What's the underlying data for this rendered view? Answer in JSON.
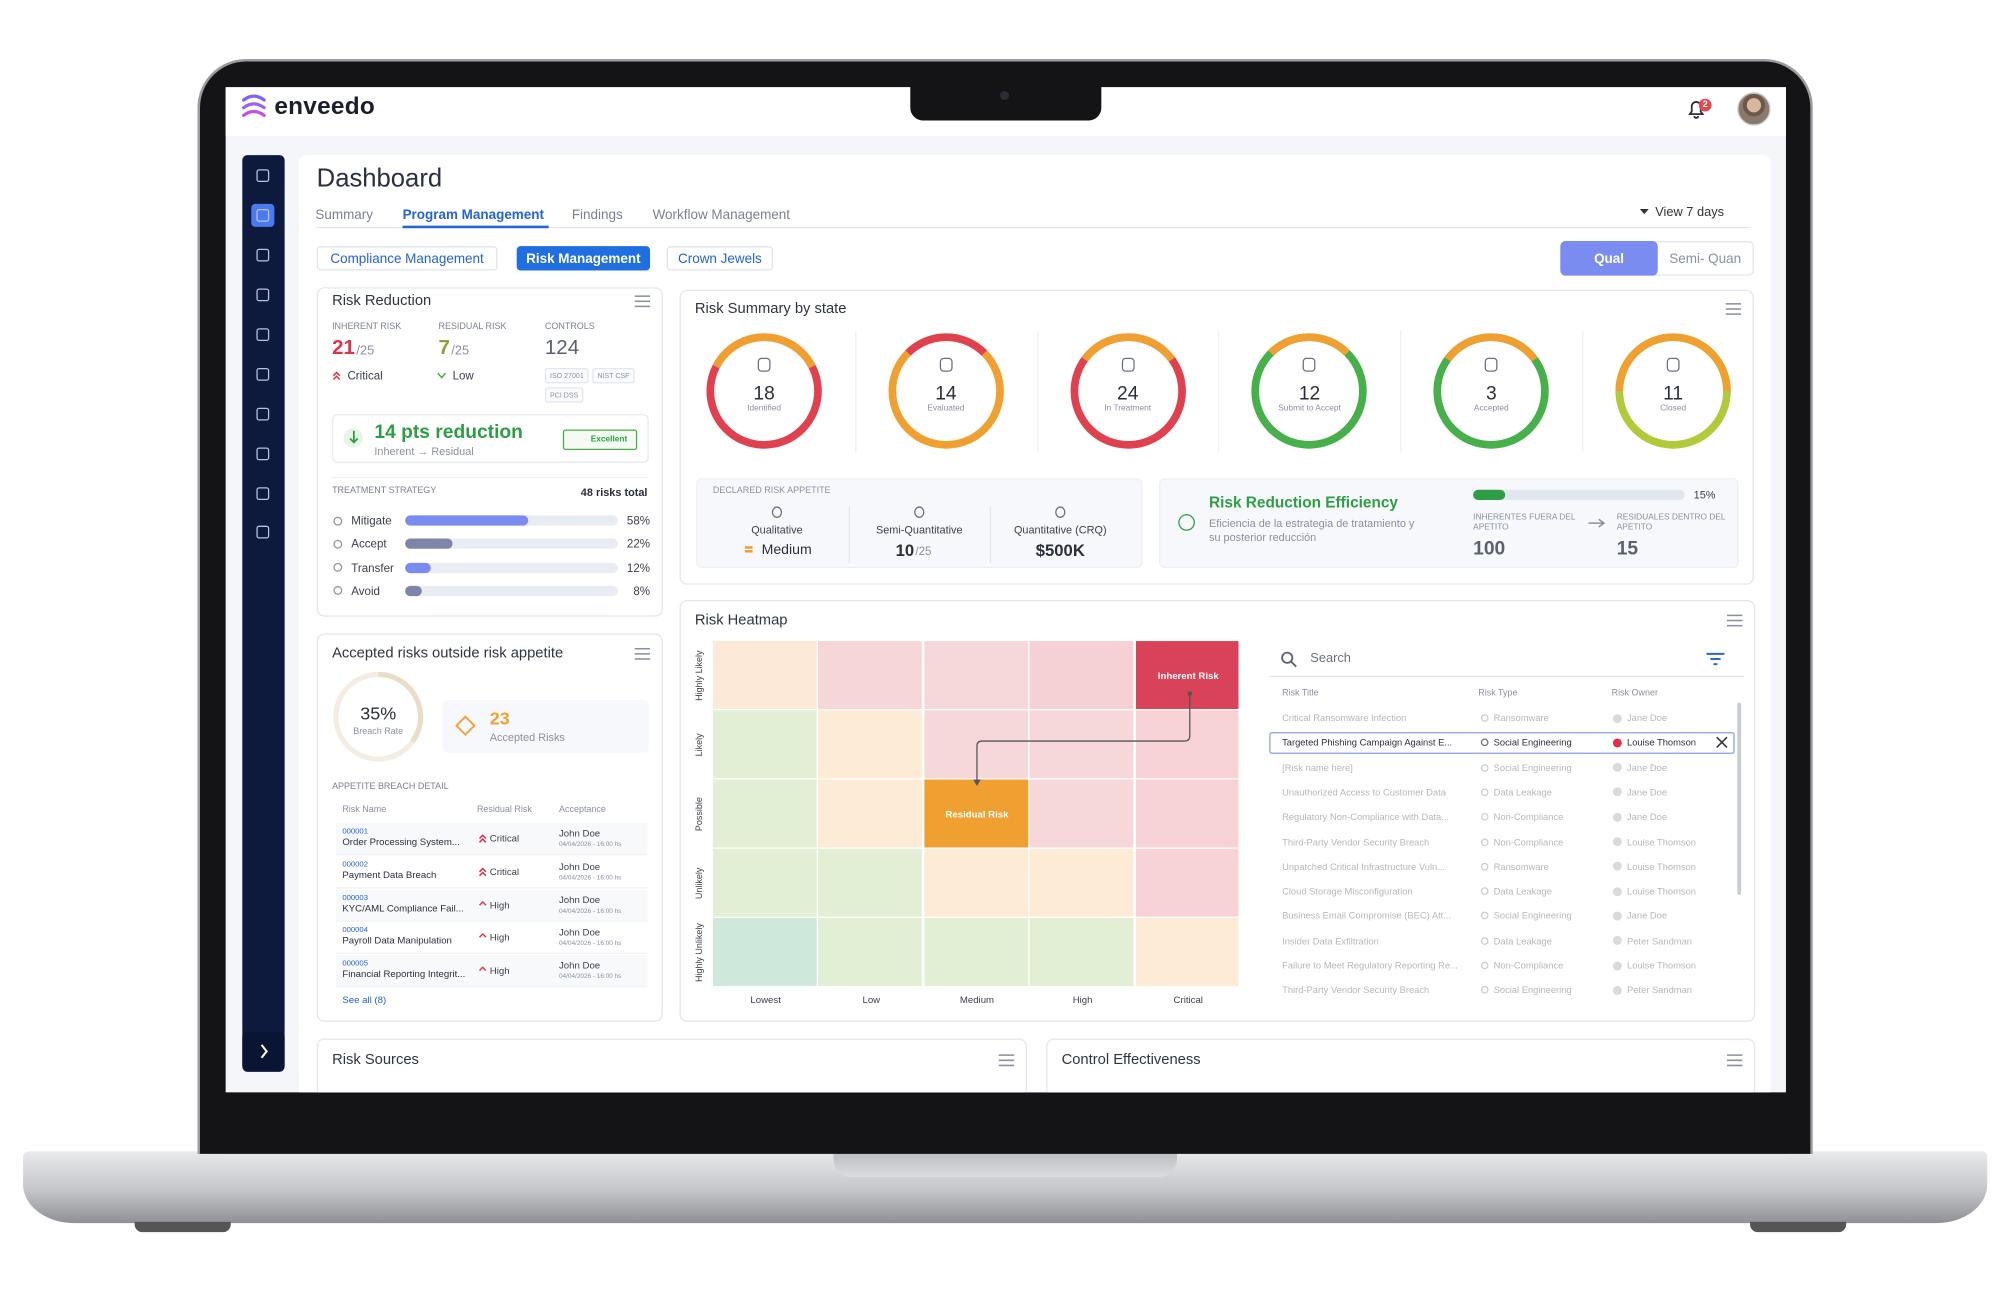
{
  "app": {
    "brand": "enveedo",
    "notifications": 2
  },
  "page": {
    "title": "Dashboard",
    "tabs": [
      "Summary",
      "Program Management",
      "Findings",
      "Workflow Management"
    ],
    "period": "View 7 days",
    "subtabs": [
      "Compliance Management",
      "Risk Management",
      "Crown Jewels"
    ],
    "modes": [
      "Qual",
      "Semi- Quan"
    ]
  },
  "risk_reduction": {
    "title": "Risk Reduction",
    "inherent": {
      "label": "INHERENT RISK",
      "value": 21,
      "scale": "/25",
      "level": "Critical"
    },
    "residual": {
      "label": "RESIDUAL RISK",
      "value": 7,
      "scale": "/25",
      "level": "Low"
    },
    "controls": {
      "label": "CONTROLS",
      "value": 124,
      "frameworks": [
        "ISO 27001",
        "NIST CSF",
        "PCI DSS"
      ]
    },
    "reduction": {
      "text": "14 pts reduction",
      "detail": "Inherent → Residual",
      "badge": "Excellent"
    },
    "strategy": {
      "label": "TREATMENT STRATEGY",
      "total": "48 risks total",
      "items": [
        {
          "name": "Mitigate",
          "value": 58,
          "label": "58%"
        },
        {
          "name": "Accept",
          "value": 22,
          "label": "22%"
        },
        {
          "name": "Transfer",
          "value": 12,
          "label": "12%"
        },
        {
          "name": "Avoid",
          "value": 8,
          "label": "8%"
        }
      ]
    }
  },
  "risk_summary": {
    "title": "Risk Summary by state",
    "states": [
      {
        "count": 18,
        "label": "Identified"
      },
      {
        "count": 14,
        "label": "Evaluated"
      },
      {
        "count": 24,
        "label": "In Treatment"
      },
      {
        "count": 12,
        "label": "Submit to Accept"
      },
      {
        "count": 3,
        "label": "Accepted"
      },
      {
        "count": 11,
        "label": "Closed"
      }
    ],
    "appetite": {
      "label": "DECLARED RISK APPETITE",
      "items": [
        {
          "name": "Qualitative",
          "value": "Medium"
        },
        {
          "name": "Semi-Quantitative",
          "value": 10,
          "scale": "/25"
        },
        {
          "name": "Quantitative (CRQ)",
          "value": "$500K"
        }
      ]
    },
    "efficiency": {
      "title": "Risk Reduction Efficiency",
      "description": "Eficiencia de la estrategia de tratamiento y su posterior reducción",
      "progress": {
        "value": 15,
        "label": "15%"
      },
      "inherent_outside": {
        "label": "INHERENTES FUERA DEL APETITO",
        "value": 100
      },
      "residual_inside": {
        "label": "RESIDUALES DENTRO DEL APETITO",
        "value": 15
      }
    }
  },
  "accepted": {
    "title": "Accepted risks outside risk appetite",
    "breach_rate": {
      "value": 35,
      "label": "35%",
      "caption": "Breach Rate"
    },
    "count": 23,
    "count_label": "Accepted Risks",
    "detail_label": "APPETITE BREACH DETAIL",
    "columns": [
      "Risk Name",
      "Residual Risk",
      "Acceptance"
    ],
    "rows": [
      {
        "id": "000001",
        "name": "Order Processing System...",
        "residual": "Critical",
        "owner": "John Doe",
        "date": "04/04/2026 - 16:00 hs"
      },
      {
        "id": "000002",
        "name": "Payment Data Breach",
        "residual": "Critical",
        "owner": "John Doe",
        "date": "04/04/2026 - 16:00 hs"
      },
      {
        "id": "000003",
        "name": "KYC/AML Compliance Fail...",
        "residual": "High",
        "owner": "John Doe",
        "date": "04/04/2026 - 16:00 hs"
      },
      {
        "id": "000004",
        "name": "Payroll Data Manipulation",
        "residual": "High",
        "owner": "John Doe",
        "date": "04/04/2026 - 16:00 hs"
      },
      {
        "id": "000005",
        "name": "Financial Reporting Integrit...",
        "residual": "High",
        "owner": "John Doe",
        "date": "04/04/2026 - 16:00 hs"
      }
    ],
    "see_all": "See all (8)"
  },
  "heatmap": {
    "title": "Risk Heatmap",
    "likelihood": [
      "Highly Likely",
      "Likely",
      "Possible",
      "Unlikely",
      "Highly Unlikely"
    ],
    "impact": [
      "Lowest",
      "Low",
      "Medium",
      "High",
      "Critical"
    ],
    "inherent_label": "Inherent Risk",
    "residual_label": "Residual Risk",
    "search": "Search",
    "columns": [
      "Risk Title",
      "Risk Type",
      "Risk Owner"
    ],
    "rows": [
      [
        "Critical Ransomware Infection",
        "Ransomware",
        "Jane Doe"
      ],
      [
        "Targeted Phishing Campaign Against E...",
        "Social Engineering",
        "Louise Thomson"
      ],
      [
        "[Risk name here]",
        "Social Engineering",
        "Jane Doe"
      ],
      [
        "Unauthorized Access to Customer Data",
        "Data Leakage",
        "Jane Doe"
      ],
      [
        "Regulatory Non-Compliance with Data...",
        "Non-Compliance",
        "Jane Doe"
      ],
      [
        "Third-Party Vendor Security Breach",
        "Non-Compliance",
        "Louise Thomson"
      ],
      [
        "Unpatched Critical Infrastructure Vuln...",
        "Ransomware",
        "Louise Thomson"
      ],
      [
        "Cloud Storage Misconfiguration",
        "Data Leakage",
        "Louise Thomson"
      ],
      [
        "Business Email Compromise (BEC) Att...",
        "Social Engineering",
        "Jane Doe"
      ],
      [
        "Insider Data Exfiltration",
        "Data Leakage",
        "Peter Sandman"
      ],
      [
        "Failure to Meet Regulatory Reporting Re...",
        "Non-Compliance",
        "Louise Thomson"
      ],
      [
        "Third-Party Vendor Security Breach",
        "Social Engineering",
        "Peter Sandman"
      ]
    ]
  },
  "bottom": {
    "risk_sources": "Risk Sources",
    "control_effectiveness": "Control Effectiveness"
  }
}
